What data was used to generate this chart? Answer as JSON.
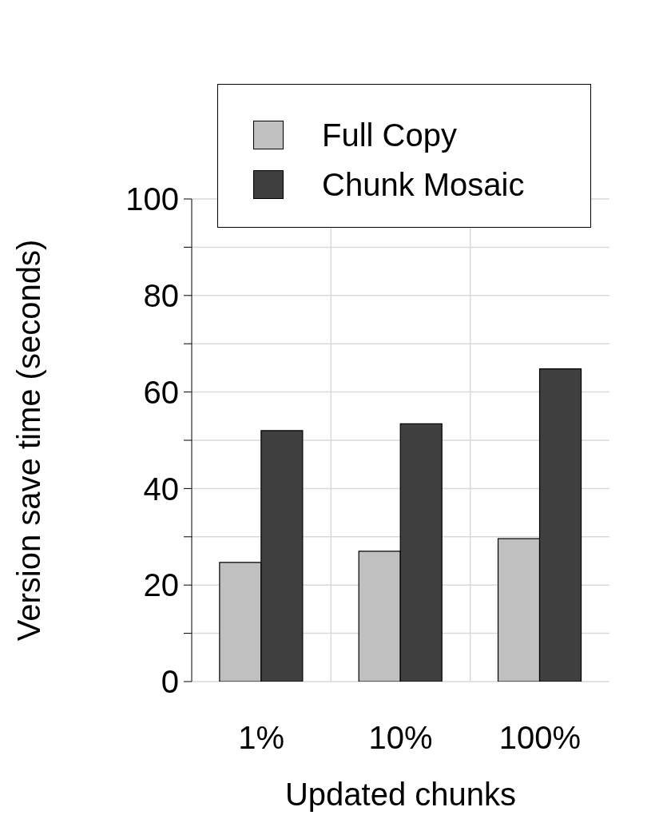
{
  "chart_data": {
    "type": "bar",
    "xlabel": "Updated chunks",
    "ylabel": "Version save time (seconds)",
    "categories": [
      "1%",
      "10%",
      "100%"
    ],
    "series": [
      {
        "name": "Full Copy",
        "color": "#c0c0c0",
        "values": [
          24.7,
          27.0,
          29.6
        ]
      },
      {
        "name": "Chunk Mosaic",
        "color": "#404040",
        "values": [
          52.0,
          53.4,
          64.8
        ]
      }
    ],
    "ylim": [
      0,
      100
    ],
    "yticks": [
      0,
      {
        "value": 10,
        "label": null
      },
      20,
      {
        "value": 30,
        "label": null
      },
      40,
      {
        "value": 50,
        "label": null
      },
      60,
      {
        "value": 70,
        "label": null
      },
      80,
      {
        "value": 90,
        "label": null
      },
      100
    ],
    "grid": true,
    "legend": "top"
  }
}
